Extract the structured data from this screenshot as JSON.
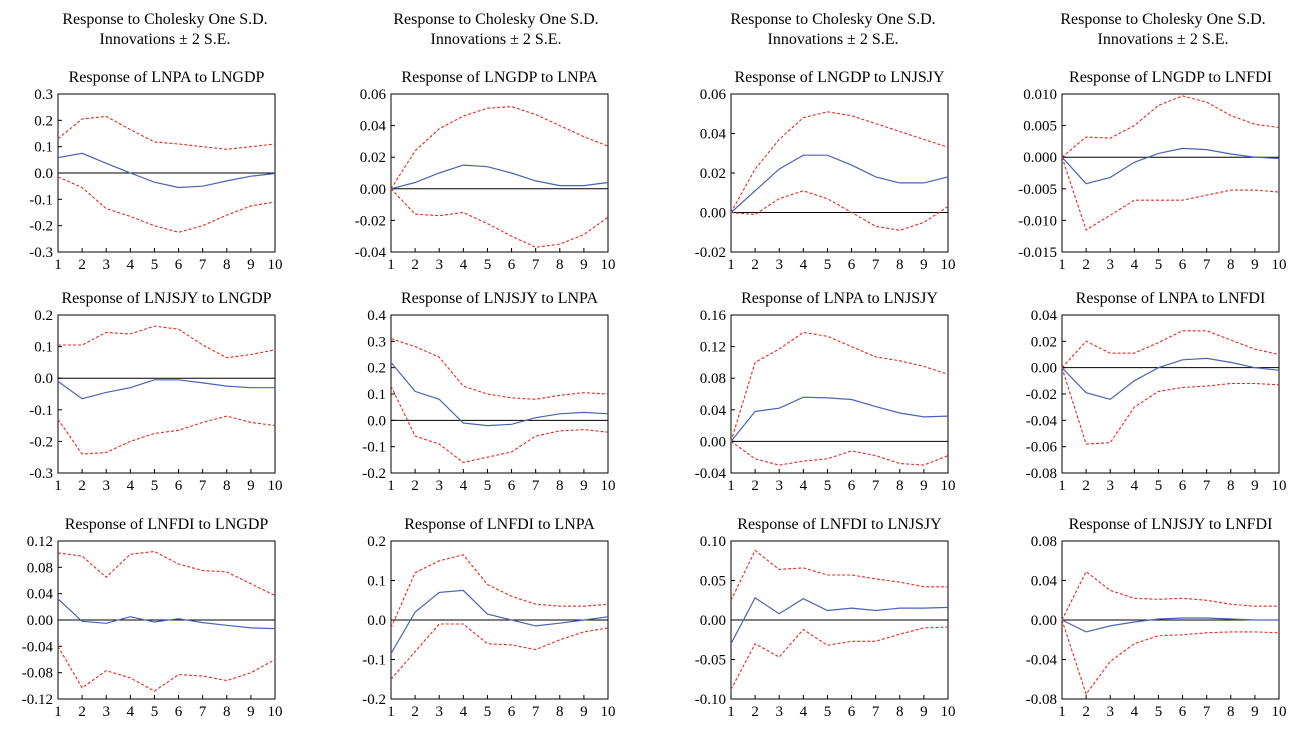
{
  "header": {
    "columns": [
      {
        "line1": "Response to Cholesky One S.D.",
        "line2": "Innovations ± 2 S.E."
      },
      {
        "line1": "Response to Cholesky One S.D.",
        "line2": "Innovations ± 2 S.E."
      },
      {
        "line1": "Response to Cholesky One S.D.",
        "line2": "Innovations ± 2 S.E."
      },
      {
        "line1": "Response to Cholesky One S.D.",
        "line2": "Innovations ± 2 S.E."
      }
    ]
  },
  "colors": {
    "response": "#4a63b5",
    "band": "#e8281e",
    "zero": "#000000",
    "frame": "#000000"
  },
  "chart_data": [
    {
      "type": "line",
      "title": "Response of LNPA to LNGDP",
      "x": [
        1,
        2,
        3,
        4,
        5,
        6,
        7,
        8,
        9,
        10
      ],
      "ylim": [
        -0.3,
        0.3
      ],
      "yticks": [
        "-0.3",
        "-0.2",
        "-0.1",
        "0.0",
        "0.1",
        "0.2",
        "0.3"
      ],
      "response": [
        0.058,
        0.075,
        0.037,
        0.0,
        -0.035,
        -0.055,
        -0.05,
        -0.03,
        -0.012,
        -0.002
      ],
      "upper": [
        0.13,
        0.205,
        0.215,
        0.165,
        0.118,
        0.11,
        0.1,
        0.09,
        0.1,
        0.11
      ],
      "lower": [
        -0.015,
        -0.055,
        -0.135,
        -0.165,
        -0.2,
        -0.225,
        -0.2,
        -0.16,
        -0.125,
        -0.11
      ]
    },
    {
      "type": "line",
      "title": "Response of LNGDP to LNPA",
      "x": [
        1,
        2,
        3,
        4,
        5,
        6,
        7,
        8,
        9,
        10
      ],
      "ylim": [
        -0.04,
        0.06
      ],
      "yticks": [
        "-0.04",
        "-0.02",
        "0.00",
        "0.02",
        "0.04",
        "0.06"
      ],
      "response": [
        0.0,
        0.004,
        0.01,
        0.015,
        0.014,
        0.01,
        0.005,
        0.002,
        0.002,
        0.004
      ],
      "upper": [
        0.0,
        0.024,
        0.038,
        0.046,
        0.051,
        0.052,
        0.047,
        0.04,
        0.033,
        0.027
      ],
      "lower": [
        0.0,
        -0.016,
        -0.017,
        -0.015,
        -0.022,
        -0.03,
        -0.037,
        -0.035,
        -0.029,
        -0.018
      ]
    },
    {
      "type": "line",
      "title": "Response of LNGDP to LNJSJY",
      "x": [
        1,
        2,
        3,
        4,
        5,
        6,
        7,
        8,
        9,
        10
      ],
      "ylim": [
        -0.02,
        0.06
      ],
      "yticks": [
        "-0.02",
        "0.00",
        "0.02",
        "0.04",
        "0.06"
      ],
      "response": [
        0.0,
        0.011,
        0.022,
        0.029,
        0.029,
        0.024,
        0.018,
        0.015,
        0.015,
        0.018
      ],
      "upper": [
        0.0,
        0.022,
        0.037,
        0.048,
        0.051,
        0.049,
        0.045,
        0.041,
        0.037,
        0.033
      ],
      "lower": [
        0.0,
        -0.001,
        0.007,
        0.011,
        0.007,
        0.0,
        -0.007,
        -0.009,
        -0.005,
        0.003
      ]
    },
    {
      "type": "line",
      "title": "Response of LNGDP to LNFDI",
      "x": [
        1,
        2,
        3,
        4,
        5,
        6,
        7,
        8,
        9,
        10
      ],
      "ylim": [
        -0.015,
        0.01
      ],
      "yticks": [
        "-0.015",
        "-0.010",
        "-0.005",
        "0.000",
        "0.005",
        "0.010"
      ],
      "response": [
        0.0,
        -0.0042,
        -0.0032,
        -0.0008,
        0.0006,
        0.0014,
        0.0012,
        0.0005,
        0.0,
        -0.0002
      ],
      "upper": [
        0.0,
        0.0032,
        0.003,
        0.005,
        0.0082,
        0.0097,
        0.0087,
        0.0066,
        0.0052,
        0.0047
      ],
      "lower": [
        0.0,
        -0.0115,
        -0.0092,
        -0.0068,
        -0.0068,
        -0.0068,
        -0.006,
        -0.0052,
        -0.0052,
        -0.0055
      ]
    },
    {
      "type": "line",
      "title": "Response of LNJSJY to LNGDP",
      "x": [
        1,
        2,
        3,
        4,
        5,
        6,
        7,
        8,
        9,
        10
      ],
      "ylim": [
        -0.3,
        0.2
      ],
      "yticks": [
        "-0.3",
        "-0.2",
        "-0.1",
        "0.0",
        "0.1",
        "0.2"
      ],
      "response": [
        -0.01,
        -0.065,
        -0.045,
        -0.03,
        -0.005,
        -0.005,
        -0.015,
        -0.025,
        -0.03,
        -0.03
      ],
      "upper": [
        0.105,
        0.105,
        0.145,
        0.14,
        0.165,
        0.155,
        0.105,
        0.065,
        0.075,
        0.09
      ],
      "lower": [
        -0.13,
        -0.24,
        -0.235,
        -0.2,
        -0.175,
        -0.165,
        -0.14,
        -0.12,
        -0.14,
        -0.15
      ]
    },
    {
      "type": "line",
      "title": "Response of LNJSJY to LNPA",
      "x": [
        1,
        2,
        3,
        4,
        5,
        6,
        7,
        8,
        9,
        10
      ],
      "ylim": [
        -0.2,
        0.4
      ],
      "yticks": [
        "-0.2",
        "-0.1",
        "0.0",
        "0.1",
        "0.2",
        "0.3",
        "0.4"
      ],
      "response": [
        0.22,
        0.11,
        0.08,
        -0.01,
        -0.02,
        -0.015,
        0.01,
        0.025,
        0.03,
        0.025
      ],
      "upper": [
        0.31,
        0.28,
        0.24,
        0.13,
        0.1,
        0.085,
        0.08,
        0.095,
        0.105,
        0.1
      ],
      "lower": [
        0.13,
        -0.06,
        -0.09,
        -0.16,
        -0.14,
        -0.12,
        -0.06,
        -0.04,
        -0.035,
        -0.045
      ]
    },
    {
      "type": "line",
      "title": "Response of LNPA to LNJSJY",
      "x": [
        1,
        2,
        3,
        4,
        5,
        6,
        7,
        8,
        9,
        10
      ],
      "ylim": [
        -0.04,
        0.16
      ],
      "yticks": [
        "-0.04",
        "0.00",
        "0.04",
        "0.08",
        "0.12",
        "0.16"
      ],
      "response": [
        0.0,
        0.038,
        0.042,
        0.056,
        0.055,
        0.053,
        0.044,
        0.036,
        0.031,
        0.032
      ],
      "upper": [
        0.0,
        0.1,
        0.117,
        0.138,
        0.133,
        0.12,
        0.107,
        0.102,
        0.095,
        0.085
      ],
      "lower": [
        0.0,
        -0.022,
        -0.03,
        -0.025,
        -0.022,
        -0.012,
        -0.018,
        -0.028,
        -0.03,
        -0.018
      ]
    },
    {
      "type": "line",
      "title": "Response of LNPA to LNFDI",
      "x": [
        1,
        2,
        3,
        4,
        5,
        6,
        7,
        8,
        9,
        10
      ],
      "ylim": [
        -0.08,
        0.04
      ],
      "yticks": [
        "-0.08",
        "-0.06",
        "-0.04",
        "-0.02",
        "0.00",
        "0.02",
        "0.04"
      ],
      "response": [
        0.0,
        -0.019,
        -0.024,
        -0.01,
        0.0,
        0.006,
        0.007,
        0.004,
        0.0,
        -0.002
      ],
      "upper": [
        0.0,
        0.02,
        0.011,
        0.011,
        0.019,
        0.028,
        0.028,
        0.021,
        0.014,
        0.01
      ],
      "lower": [
        0.0,
        -0.058,
        -0.057,
        -0.03,
        -0.018,
        -0.015,
        -0.014,
        -0.012,
        -0.012,
        -0.013
      ]
    },
    {
      "type": "line",
      "title": "Response of LNFDI to LNGDP",
      "x": [
        1,
        2,
        3,
        4,
        5,
        6,
        7,
        8,
        9,
        10
      ],
      "ylim": [
        -0.12,
        0.12
      ],
      "yticks": [
        "-0.12",
        "-0.08",
        "-0.04",
        "0.00",
        "0.04",
        "0.08",
        "0.12"
      ],
      "response": [
        0.032,
        -0.002,
        -0.005,
        0.005,
        -0.003,
        0.002,
        -0.004,
        -0.008,
        -0.012,
        -0.013
      ],
      "upper": [
        0.102,
        0.097,
        0.065,
        0.1,
        0.104,
        0.085,
        0.075,
        0.073,
        0.055,
        0.037
      ],
      "lower": [
        -0.04,
        -0.103,
        -0.077,
        -0.088,
        -0.108,
        -0.083,
        -0.085,
        -0.092,
        -0.08,
        -0.06
      ]
    },
    {
      "type": "line",
      "title": "Response of LNFDI to LNPA",
      "x": [
        1,
        2,
        3,
        4,
        5,
        6,
        7,
        8,
        9,
        10
      ],
      "ylim": [
        -0.2,
        0.2
      ],
      "yticks": [
        "-0.2",
        "-0.1",
        "0.0",
        "0.1",
        "0.2"
      ],
      "response": [
        -0.085,
        0.02,
        0.07,
        0.075,
        0.015,
        0.0,
        -0.015,
        -0.008,
        0.0,
        0.008
      ],
      "upper": [
        -0.02,
        0.12,
        0.15,
        0.165,
        0.09,
        0.06,
        0.04,
        0.035,
        0.035,
        0.04
      ],
      "lower": [
        -0.15,
        -0.08,
        -0.01,
        -0.01,
        -0.06,
        -0.063,
        -0.075,
        -0.05,
        -0.03,
        -0.02
      ]
    },
    {
      "type": "line",
      "title": "Response of LNFDI to LNJSJY",
      "x": [
        1,
        2,
        3,
        4,
        5,
        6,
        7,
        8,
        9,
        10
      ],
      "ylim": [
        -0.1,
        0.1
      ],
      "yticks": [
        "-0.10",
        "-0.05",
        "0.00",
        "0.05",
        "0.10"
      ],
      "response": [
        -0.03,
        0.028,
        0.008,
        0.027,
        0.012,
        0.015,
        0.012,
        0.015,
        0.015,
        0.016
      ],
      "upper": [
        0.025,
        0.088,
        0.064,
        0.066,
        0.057,
        0.057,
        0.052,
        0.048,
        0.042,
        0.042
      ],
      "lower": [
        -0.088,
        -0.03,
        -0.047,
        -0.012,
        -0.032,
        -0.027,
        -0.027,
        -0.018,
        -0.01,
        -0.009
      ]
    },
    {
      "type": "line",
      "title": "Response of LNJSJY to LNFDI",
      "x": [
        1,
        2,
        3,
        4,
        5,
        6,
        7,
        8,
        9,
        10
      ],
      "ylim": [
        -0.08,
        0.08
      ],
      "yticks": [
        "-0.08",
        "-0.04",
        "0.00",
        "0.04",
        "0.08"
      ],
      "response": [
        0.0,
        -0.012,
        -0.006,
        -0.002,
        0.001,
        0.002,
        0.002,
        0.001,
        0.0,
        0.0
      ],
      "upper": [
        0.0,
        0.049,
        0.03,
        0.022,
        0.021,
        0.022,
        0.02,
        0.016,
        0.014,
        0.014
      ],
      "lower": [
        0.0,
        -0.075,
        -0.042,
        -0.024,
        -0.016,
        -0.015,
        -0.013,
        -0.012,
        -0.012,
        -0.013
      ]
    }
  ]
}
